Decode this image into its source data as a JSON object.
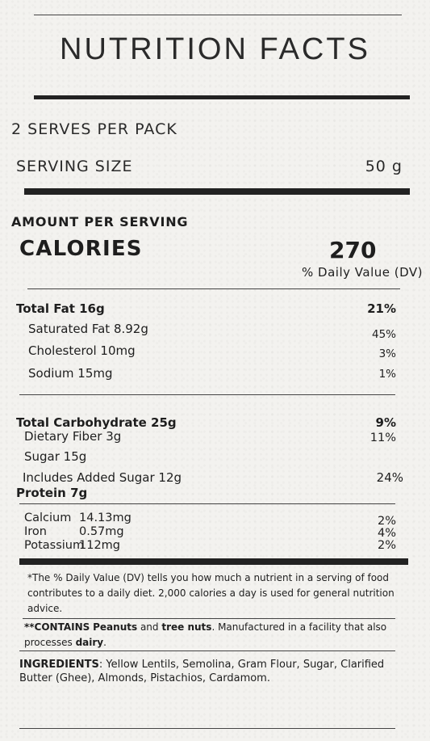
{
  "title": "NUTRITION FACTS",
  "serves_per_pack": "2 SERVES PER PACK",
  "serving_size": {
    "label": "SERVING SIZE",
    "value": "50 g"
  },
  "amount_per_serving": "AMOUNT PER SERVING",
  "calories": {
    "label": "CALORIES",
    "value": "270"
  },
  "dv_header": "% Daily Value (DV)",
  "fat": {
    "label": "Total Fat 16g",
    "dv": "21%",
    "sub": [
      {
        "label": "Saturated Fat 8.92g",
        "dv": "45%"
      },
      {
        "label": "Cholesterol 10mg",
        "dv": "3%"
      },
      {
        "label": "Sodium 15mg",
        "dv": "1%"
      }
    ]
  },
  "carbs": {
    "label": "Total Carbohydrate 25g",
    "dv": "9%",
    "fiber": {
      "label": "Dietary Fiber 3g",
      "dv": "11%"
    },
    "sugar": {
      "label": "Sugar 15g"
    },
    "added_sugar": {
      "label": "Includes Added Sugar 12g",
      "dv": "24%"
    }
  },
  "protein": {
    "label": "Protein 7g"
  },
  "minerals": [
    {
      "name": "Calcium",
      "amount": "14.13mg",
      "dv": "2%"
    },
    {
      "name": "Iron",
      "amount": "0.57mg",
      "dv": "4%"
    },
    {
      "name": "Potassium",
      "amount": "112mg",
      "dv": "2%"
    }
  ],
  "footnote": "*The % Daily Value (DV) tells you how much a nutrient in a serving of food contributes to a daily diet. 2,000 calories a day is used for general nutrition advice.",
  "allergens": {
    "prefix": "**CONTAINS",
    "item1": "Peanuts",
    "and": "and",
    "item2": "tree nuts",
    "rest": ". Manufactured in a facility that also processes",
    "item3": "dairy",
    "end": "."
  },
  "ingredients": {
    "label": "INGREDIENTS",
    "text": ": Yellow Lentils, Semolina, Gram Flour, Sugar, Clarified Butter (Ghee), Almonds, Pistachios, Cardamom."
  }
}
